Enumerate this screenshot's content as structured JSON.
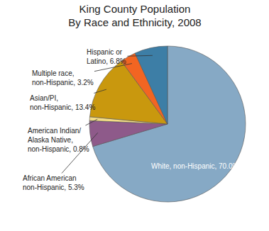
{
  "chart_data": {
    "type": "pie",
    "title": "King County Population\nBy Race and Ethnicity, 2008",
    "values": [
      70.0,
      5.3,
      0.8,
      13.4,
      3.2,
      6.8
    ],
    "value_labels": [
      "White, non-Hispanic, 70.0%",
      "African American\nnon-Hispanic, 5.3%",
      "American Indian/\nAlaska Native,\nnon-Hispanic, 0.8%",
      "Asian/PI,\nnon-Hispanic, 13.4%",
      "Multiple race,\nnon-Hispanic, 3.2%",
      "Hispanic or\nLatino, 6.8%"
    ],
    "colors": [
      "#86a9c5",
      "#8e5a8a",
      "#f3dc86",
      "#c9980e",
      "#f26522",
      "#3d7ea6"
    ]
  }
}
